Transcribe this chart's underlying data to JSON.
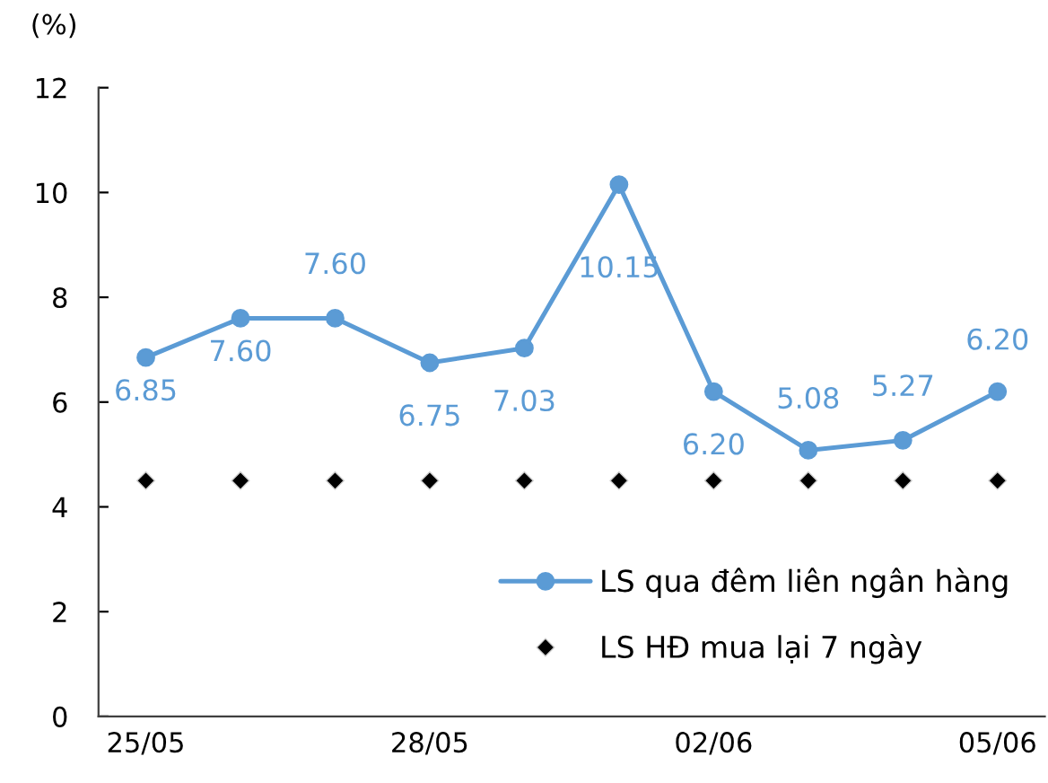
{
  "chart_data": {
    "type": "line",
    "ylabel": "(%)",
    "categories": [
      "25/05",
      null,
      null,
      "28/05",
      null,
      null,
      "02/06",
      null,
      null,
      "05/06"
    ],
    "series": [
      {
        "name": "LS qua đêm liên ngân hàng",
        "color": "#5b9bd5",
        "marker": "circle",
        "line_style": "solid",
        "values": [
          6.85,
          7.6,
          7.6,
          6.75,
          7.03,
          10.15,
          6.2,
          5.08,
          5.27,
          6.2
        ],
        "value_labels": [
          "6.85",
          "7.60",
          "7.60",
          "6.75",
          "7.03",
          "10.15",
          "6.20",
          "5.08",
          "5.27",
          "6.20"
        ]
      },
      {
        "name": "LS HĐ mua lại 7 ngày",
        "type": "scatter",
        "color": "#000000",
        "marker": "diamond",
        "values": [
          4.5,
          4.5,
          4.5,
          4.5,
          4.5,
          4.5,
          4.5,
          4.5,
          4.5,
          4.5
        ]
      }
    ],
    "ylim": [
      0,
      12
    ],
    "yticks": [
      0,
      2,
      4,
      6,
      8,
      10,
      12
    ],
    "grid": false,
    "legend": "bottom right"
  }
}
